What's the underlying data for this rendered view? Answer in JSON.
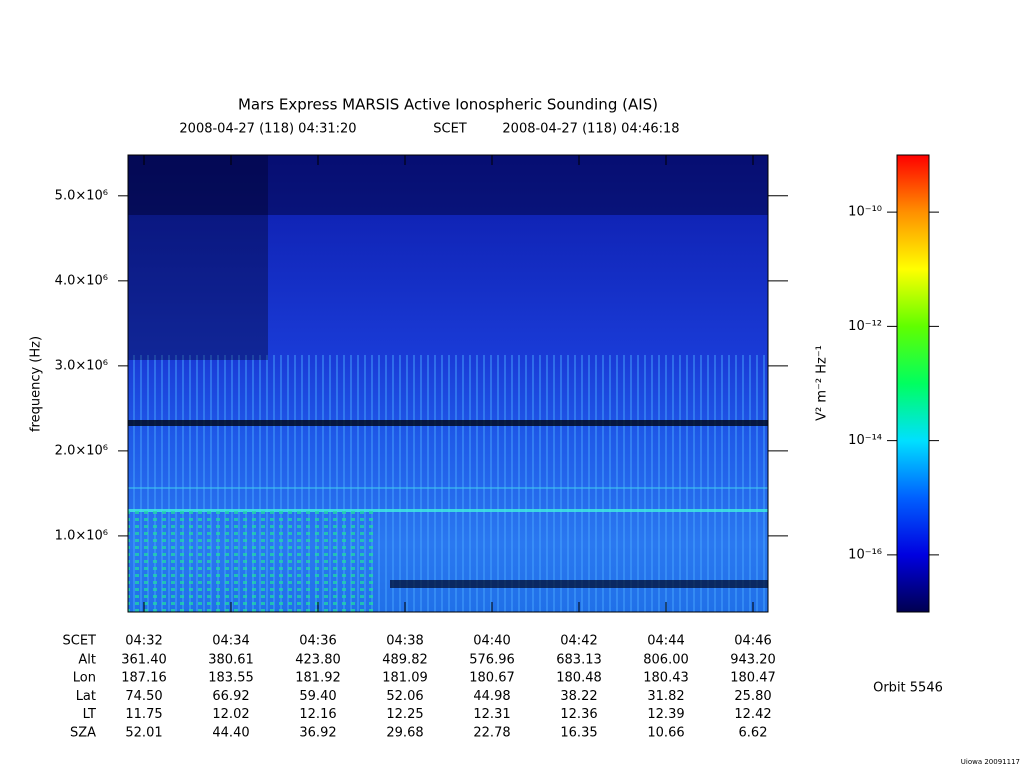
{
  "chart_data": {
    "type": "spectrogram",
    "title": "Mars Express MARSIS Active Ionospheric Sounding (AIS)",
    "subtitle": {
      "start": "2008-04-27 (118) 04:31:20",
      "frame": "SCET",
      "end": "2008-04-27 (118) 04:46:18"
    },
    "y_label": "frequency (Hz)",
    "ylim": [
      105000,
      5480000
    ],
    "yticks": [
      {
        "value": 1000000,
        "label": "1.0×10⁶"
      },
      {
        "value": 2000000,
        "label": "2.0×10⁶"
      },
      {
        "value": 3000000,
        "label": "3.0×10⁶"
      },
      {
        "value": 4000000,
        "label": "4.0×10⁶"
      },
      {
        "value": 5000000,
        "label": "5.0×10⁶"
      }
    ],
    "x_label": "SCET",
    "x": [
      "04:32",
      "04:34",
      "04:36",
      "04:38",
      "04:40",
      "04:42",
      "04:44",
      "04:46"
    ],
    "ephemeris": [
      {
        "name": "Alt",
        "values": [
          "361.40",
          "380.61",
          "423.80",
          "489.82",
          "576.96",
          "683.13",
          "806.00",
          "943.20"
        ]
      },
      {
        "name": "Lon",
        "values": [
          "187.16",
          "183.55",
          "181.92",
          "181.09",
          "180.67",
          "180.48",
          "180.43",
          "180.47"
        ]
      },
      {
        "name": "Lat",
        "values": [
          "74.50",
          "66.92",
          "59.40",
          "52.06",
          "44.98",
          "38.22",
          "31.82",
          "25.80"
        ]
      },
      {
        "name": "LT",
        "values": [
          "11.75",
          "12.02",
          "12.16",
          "12.25",
          "12.31",
          "12.36",
          "12.39",
          "12.42"
        ]
      },
      {
        "name": "SZA",
        "values": [
          "52.01",
          "44.40",
          "36.92",
          "29.68",
          "22.78",
          "16.35",
          "10.66",
          "6.62"
        ]
      }
    ],
    "colorbar": {
      "label": "V² m⁻² Hz⁻¹",
      "log": true,
      "lim": [
        1e-17,
        1e-09
      ],
      "ticks": [
        {
          "value": 1e-16,
          "label": "10⁻¹⁶"
        },
        {
          "value": 1e-14,
          "label": "10⁻¹⁴"
        },
        {
          "value": 1e-12,
          "label": "10⁻¹²"
        },
        {
          "value": 1e-10,
          "label": "10⁻¹⁰"
        }
      ],
      "colors": [
        "#000050",
        "#0000e0",
        "#0060ff",
        "#00e0ff",
        "#00ff60",
        "#60ff00",
        "#ffff00",
        "#ff9000",
        "#ff0000"
      ]
    },
    "orbit": "Orbit 5546",
    "credit": "Uiowa 20091117"
  }
}
